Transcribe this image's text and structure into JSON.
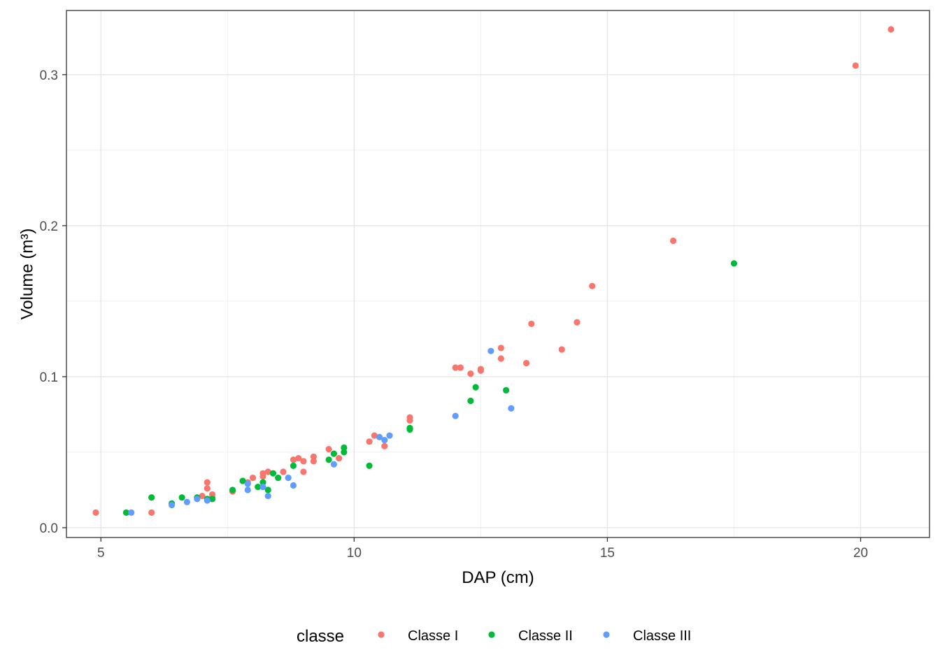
{
  "chart_data": {
    "type": "scatter",
    "title": "",
    "xlabel": "DAP (cm)",
    "ylabel": "Volume (m³)",
    "xlim": [
      4.32,
      21.36
    ],
    "ylim": [
      -0.0065,
      0.3425
    ],
    "x_ticks": [
      5,
      10,
      15,
      20
    ],
    "x_tick_labels": [
      "5",
      "10",
      "15",
      "20"
    ],
    "y_ticks": [
      0.0,
      0.1,
      0.2,
      0.3
    ],
    "y_tick_labels": [
      "0.0",
      "0.1",
      "0.2",
      "0.3"
    ],
    "grid": true,
    "legend": {
      "title": "classe",
      "position": "bottom"
    },
    "series": [
      {
        "name": "Classe I",
        "color": "#F8766D",
        "points": [
          [
            4.9,
            0.01
          ],
          [
            6.0,
            0.01
          ],
          [
            7.0,
            0.021
          ],
          [
            7.1,
            0.03
          ],
          [
            7.1,
            0.026
          ],
          [
            7.2,
            0.022
          ],
          [
            7.2,
            0.02
          ],
          [
            7.6,
            0.024
          ],
          [
            7.9,
            0.03
          ],
          [
            8.0,
            0.033
          ],
          [
            8.2,
            0.036
          ],
          [
            8.2,
            0.034
          ],
          [
            8.3,
            0.037
          ],
          [
            8.6,
            0.037
          ],
          [
            8.8,
            0.045
          ],
          [
            8.9,
            0.046
          ],
          [
            9.0,
            0.044
          ],
          [
            9.0,
            0.037
          ],
          [
            9.2,
            0.047
          ],
          [
            9.2,
            0.044
          ],
          [
            9.5,
            0.052
          ],
          [
            9.7,
            0.046
          ],
          [
            10.3,
            0.057
          ],
          [
            10.4,
            0.061
          ],
          [
            10.6,
            0.054
          ],
          [
            11.1,
            0.073
          ],
          [
            11.1,
            0.071
          ],
          [
            12.0,
            0.106
          ],
          [
            12.1,
            0.106
          ],
          [
            12.3,
            0.102
          ],
          [
            12.5,
            0.105
          ],
          [
            12.5,
            0.104
          ],
          [
            12.9,
            0.119
          ],
          [
            12.9,
            0.112
          ],
          [
            13.4,
            0.109
          ],
          [
            13.5,
            0.135
          ],
          [
            14.1,
            0.118
          ],
          [
            14.4,
            0.136
          ],
          [
            14.7,
            0.16
          ],
          [
            16.3,
            0.19
          ],
          [
            19.9,
            0.306
          ],
          [
            20.6,
            0.33
          ]
        ]
      },
      {
        "name": "Classe II",
        "color": "#00BA38",
        "points": [
          [
            5.5,
            0.01
          ],
          [
            6.0,
            0.02
          ],
          [
            6.4,
            0.016
          ],
          [
            6.6,
            0.02
          ],
          [
            6.9,
            0.02
          ],
          [
            7.1,
            0.019
          ],
          [
            7.2,
            0.019
          ],
          [
            7.6,
            0.025
          ],
          [
            7.8,
            0.031
          ],
          [
            8.1,
            0.027
          ],
          [
            8.2,
            0.03
          ],
          [
            8.3,
            0.025
          ],
          [
            8.4,
            0.036
          ],
          [
            8.5,
            0.033
          ],
          [
            8.8,
            0.041
          ],
          [
            9.5,
            0.045
          ],
          [
            9.6,
            0.049
          ],
          [
            9.8,
            0.053
          ],
          [
            9.8,
            0.05
          ],
          [
            10.3,
            0.041
          ],
          [
            11.1,
            0.066
          ],
          [
            11.1,
            0.065
          ],
          [
            12.3,
            0.084
          ],
          [
            12.4,
            0.093
          ],
          [
            13.0,
            0.091
          ],
          [
            17.5,
            0.175
          ]
        ]
      },
      {
        "name": "Classe III",
        "color": "#619CFF",
        "points": [
          [
            5.6,
            0.01
          ],
          [
            6.4,
            0.015
          ],
          [
            6.7,
            0.017
          ],
          [
            6.9,
            0.019
          ],
          [
            7.1,
            0.018
          ],
          [
            7.9,
            0.029
          ],
          [
            7.9,
            0.025
          ],
          [
            8.2,
            0.027
          ],
          [
            8.3,
            0.021
          ],
          [
            8.7,
            0.033
          ],
          [
            8.8,
            0.028
          ],
          [
            9.6,
            0.042
          ],
          [
            10.5,
            0.06
          ],
          [
            10.6,
            0.058
          ],
          [
            10.7,
            0.061
          ],
          [
            12.0,
            0.074
          ],
          [
            12.7,
            0.117
          ],
          [
            13.1,
            0.079
          ]
        ]
      }
    ]
  }
}
